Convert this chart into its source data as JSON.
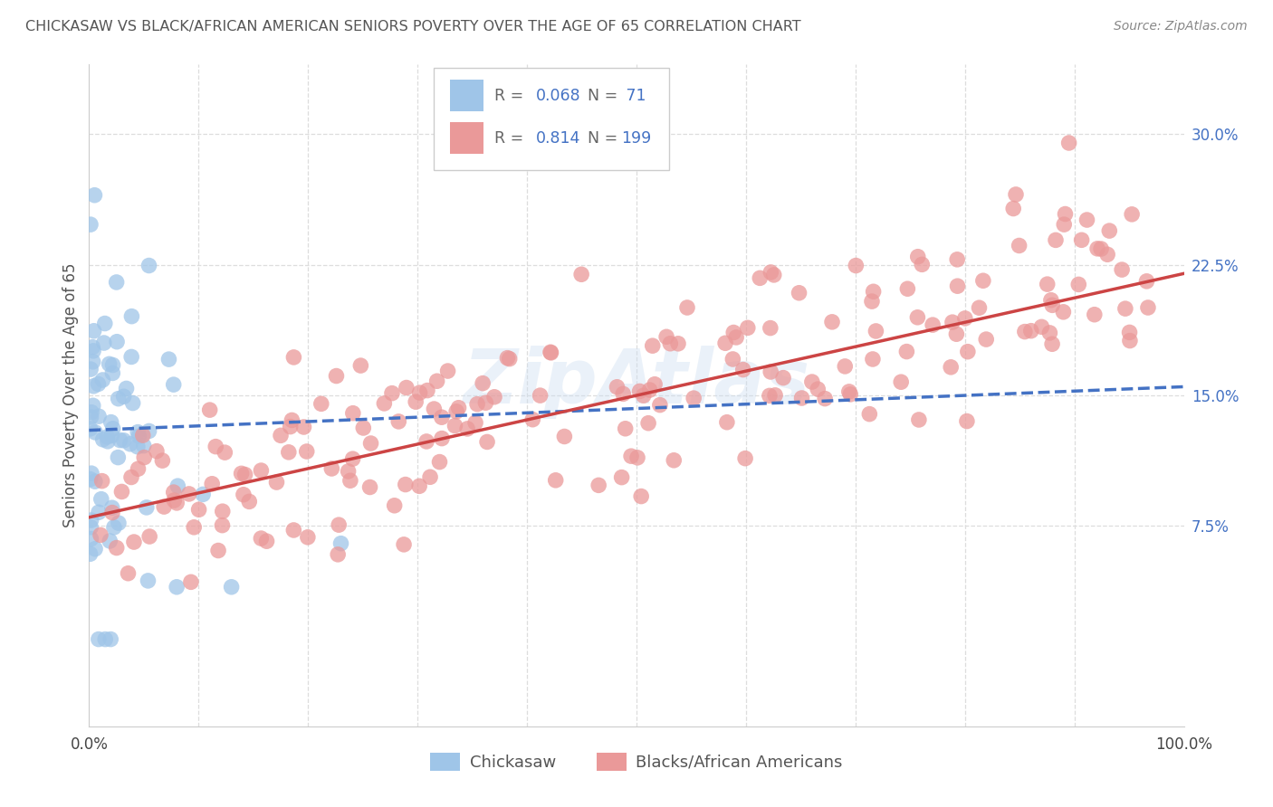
{
  "title": "CHICKASAW VS BLACK/AFRICAN AMERICAN SENIORS POVERTY OVER THE AGE OF 65 CORRELATION CHART",
  "source": "Source: ZipAtlas.com",
  "ylabel": "Seniors Poverty Over the Age of 65",
  "xlim": [
    0.0,
    1.0
  ],
  "ylim": [
    -0.04,
    0.34
  ],
  "xtick_positions": [
    0.0,
    0.1,
    0.2,
    0.3,
    0.4,
    0.5,
    0.6,
    0.7,
    0.8,
    0.9,
    1.0
  ],
  "xticklabels": [
    "0.0%",
    "",
    "",
    "",
    "",
    "",
    "",
    "",
    "",
    "",
    "100.0%"
  ],
  "yticks_right": [
    0.075,
    0.15,
    0.225,
    0.3
  ],
  "ytick_labels_right": [
    "7.5%",
    "15.0%",
    "22.5%",
    "30.0%"
  ],
  "blue_color": "#9fc5e8",
  "pink_color": "#ea9999",
  "blue_line_color": "#4472c4",
  "pink_line_color": "#cc4444",
  "label1": "Chickasaw",
  "label2": "Blacks/African Americans",
  "watermark": "ZipAtlas",
  "background_color": "#ffffff",
  "grid_color": "#dddddd",
  "title_color": "#555555",
  "blue_R": 0.068,
  "blue_N": 71,
  "pink_R": 0.814,
  "pink_N": 199,
  "legend_text_color": "#4472c4",
  "legend_label_color": "#666666"
}
